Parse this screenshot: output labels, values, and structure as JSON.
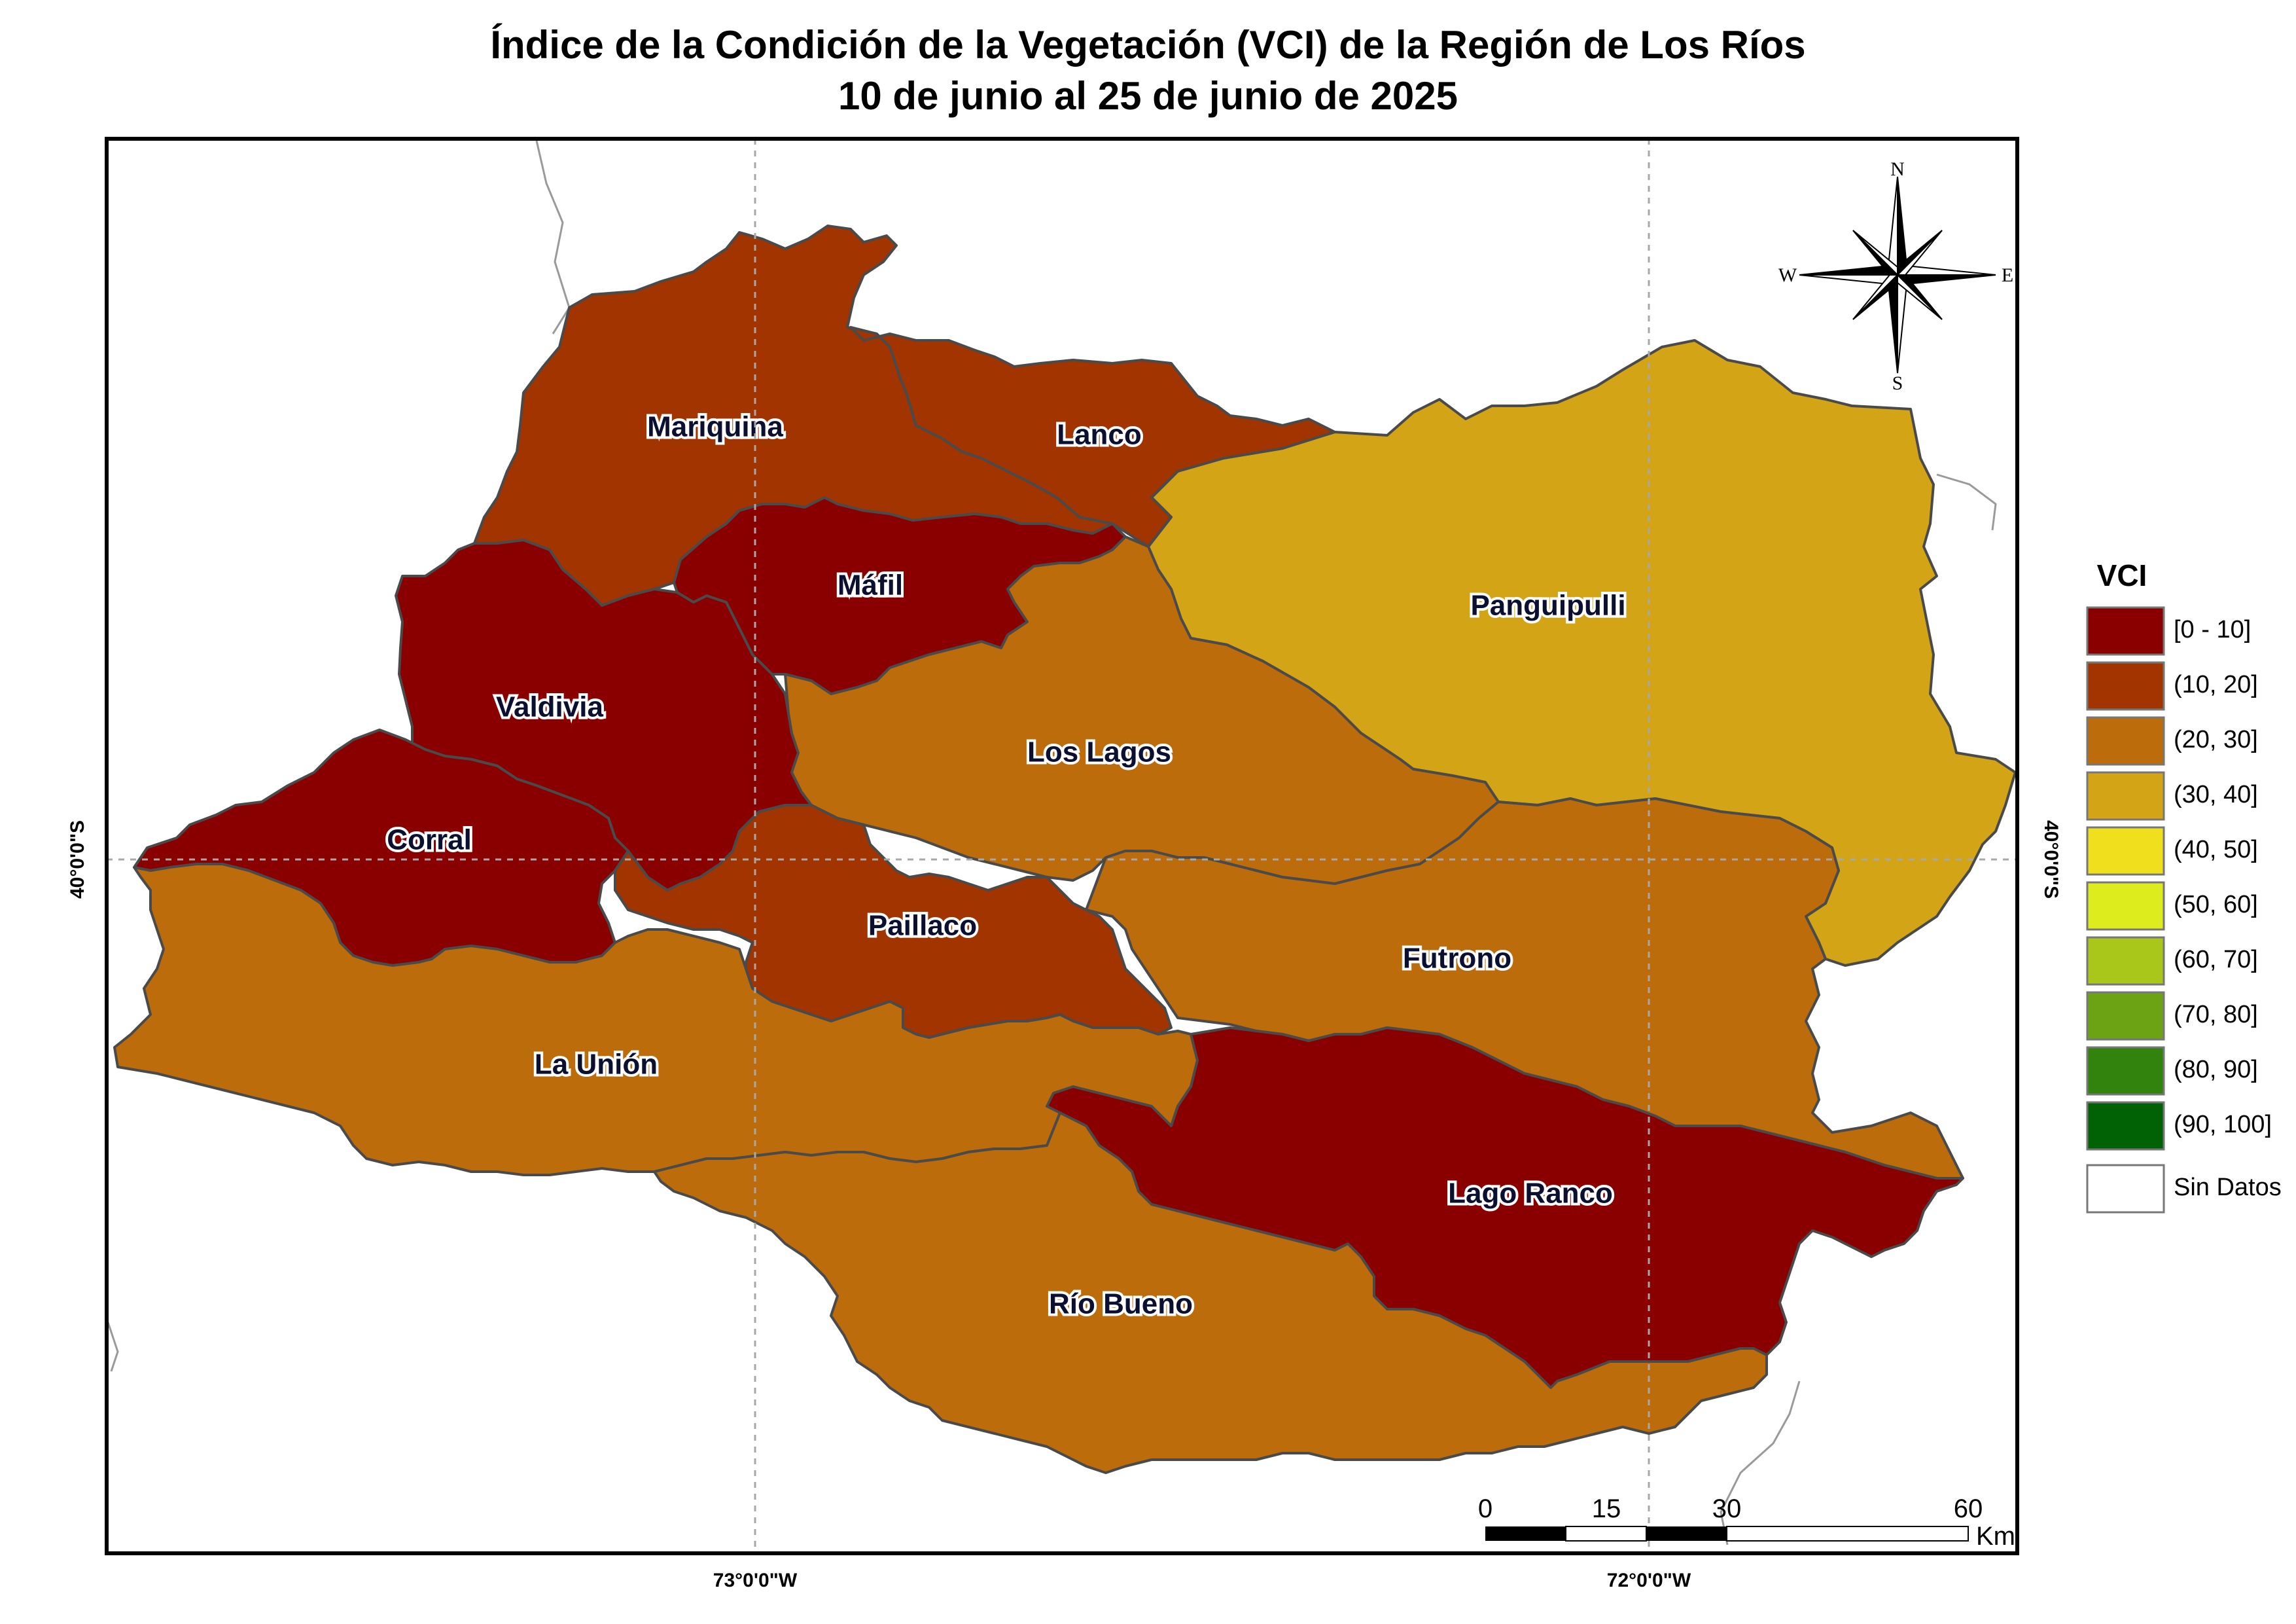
{
  "title": {
    "line1": "Índice de la Condición de la Vegetación (VCI) de la Región de Los Ríos",
    "line2": "10 de junio al 25 de junio de 2025"
  },
  "map": {
    "graticule": {
      "lon_left": "73°0'0\"W",
      "lon_right": "72°0'0\"W",
      "lat_left": "40°0'0\"S",
      "lat_right": "40°0'0\"S"
    },
    "municipalities": [
      {
        "key": "mariquina",
        "name": "Mariquina",
        "vci_class": "(10, 20]",
        "color": "#a23400"
      },
      {
        "key": "lanco",
        "name": "Lanco",
        "vci_class": "(10, 20]",
        "color": "#a23400"
      },
      {
        "key": "mafil",
        "name": "Máfil",
        "vci_class": "[0 - 10]",
        "color": "#8a0000"
      },
      {
        "key": "valdivia",
        "name": "Valdivia",
        "vci_class": "[0 - 10]",
        "color": "#8a0000"
      },
      {
        "key": "corral",
        "name": "Corral",
        "vci_class": "[0 - 10]",
        "color": "#8a0000"
      },
      {
        "key": "panguipulli",
        "name": "Panguipulli",
        "vci_class": "(30, 40]",
        "color": "#d4a417"
      },
      {
        "key": "los_lagos",
        "name": "Los Lagos",
        "vci_class": "(20, 30]",
        "color": "#bc6c0a"
      },
      {
        "key": "paillaco",
        "name": "Paillaco",
        "vci_class": "(10, 20]",
        "color": "#a23400"
      },
      {
        "key": "futrono",
        "name": "Futrono",
        "vci_class": "(20, 30]",
        "color": "#bc6c0a"
      },
      {
        "key": "la_union",
        "name": "La Unión",
        "vci_class": "(20, 30]",
        "color": "#bc6c0a"
      },
      {
        "key": "lago_ranco",
        "name": "Lago Ranco",
        "vci_class": "[0 - 10]",
        "color": "#8a0000"
      },
      {
        "key": "rio_bueno",
        "name": "Río Bueno",
        "vci_class": "(20, 30]",
        "color": "#bc6c0a"
      }
    ]
  },
  "compass": {
    "north": "N",
    "south": "S",
    "east": "E",
    "west": "W",
    "icon": "compass-rose-icon"
  },
  "scale_bar": {
    "ticks": [
      "0",
      "15",
      "30",
      "60"
    ],
    "unit": "Km"
  },
  "legend": {
    "title": "VCI",
    "items": [
      {
        "label": "[0 - 10]",
        "color": "#8a0000"
      },
      {
        "label": "(10, 20]",
        "color": "#a23400"
      },
      {
        "label": "(20, 30]",
        "color": "#bc6c0a"
      },
      {
        "label": "(30, 40]",
        "color": "#d4a417"
      },
      {
        "label": "(40, 50]",
        "color": "#f0df1c"
      },
      {
        "label": "(50, 60]",
        "color": "#dcec1c"
      },
      {
        "label": "(60, 70]",
        "color": "#a9c71a"
      },
      {
        "label": "(70, 80]",
        "color": "#6ba314"
      },
      {
        "label": "(80, 90]",
        "color": "#32830e"
      },
      {
        "label": "(90, 100]",
        "color": "#006205"
      },
      {
        "label": "Sin Datos",
        "color": "#ffffff"
      }
    ]
  }
}
